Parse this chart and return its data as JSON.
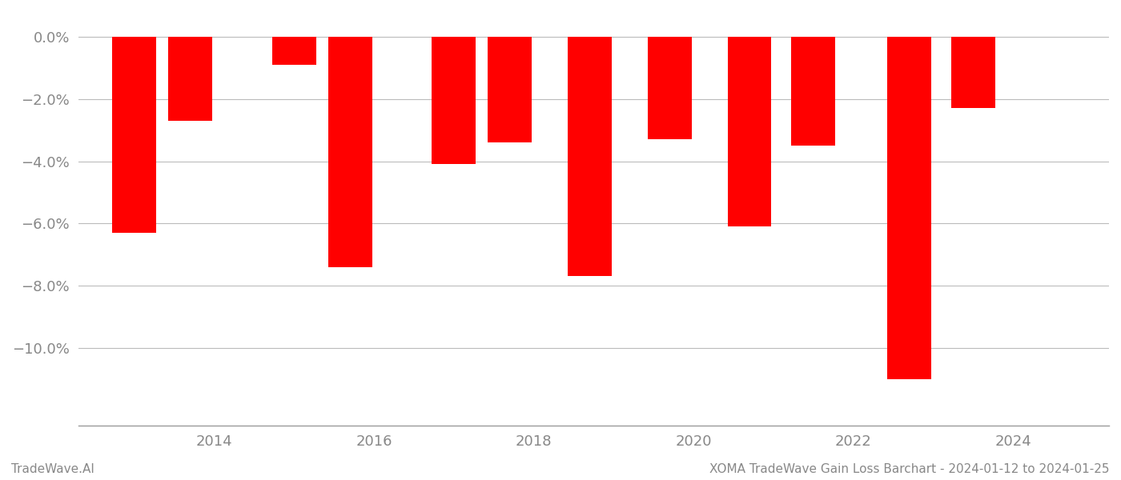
{
  "years": [
    2013,
    2013.7,
    2015,
    2015.7,
    2017,
    2017.7,
    2018.7,
    2019.7,
    2020.7,
    2021.5,
    2022.7,
    2023.5
  ],
  "values": [
    -6.3,
    -2.7,
    -0.9,
    -7.4,
    -4.1,
    -3.4,
    -7.7,
    -3.3,
    -6.1,
    -3.5,
    -11.0,
    -2.3
  ],
  "bar_color": "#ff0000",
  "background_color": "#ffffff",
  "grid_color": "#bbbbbb",
  "axis_label_color": "#888888",
  "ylabel_ticks": [
    0.0,
    -2.0,
    -4.0,
    -6.0,
    -8.0,
    -10.0
  ],
  "ylim": [
    -12.5,
    0.8
  ],
  "xlim": [
    2012.3,
    2025.2
  ],
  "xlabel_ticks": [
    2014,
    2016,
    2018,
    2020,
    2022,
    2024
  ],
  "footer_left": "TradeWave.AI",
  "footer_right": "XOMA TradeWave Gain Loss Barchart - 2024-01-12 to 2024-01-25",
  "bar_width": 0.55
}
